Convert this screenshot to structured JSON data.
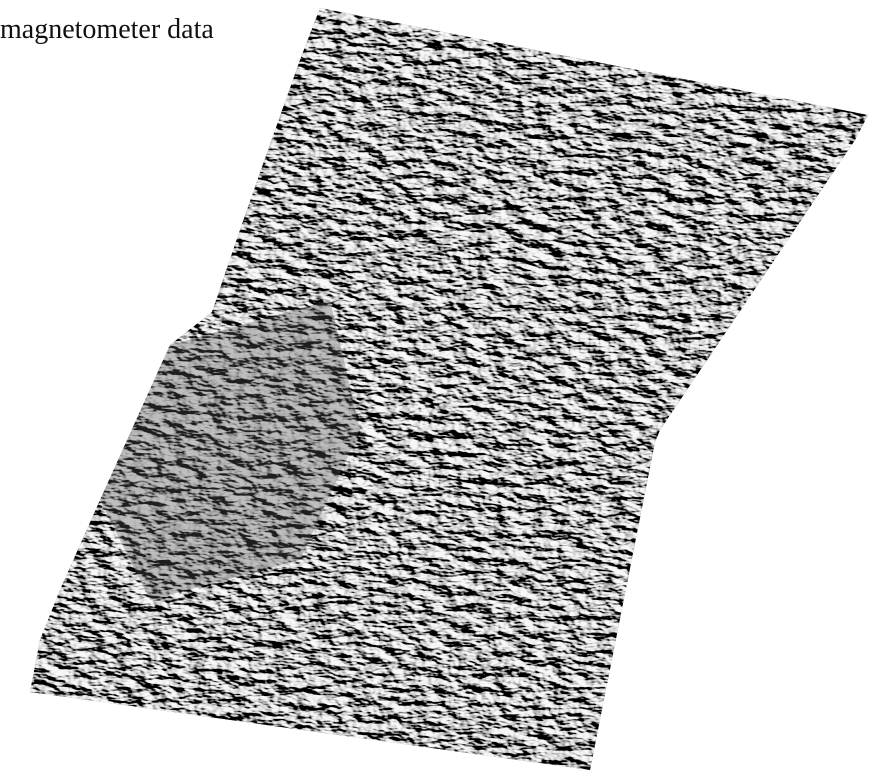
{
  "caption": "magnetometer data"
}
